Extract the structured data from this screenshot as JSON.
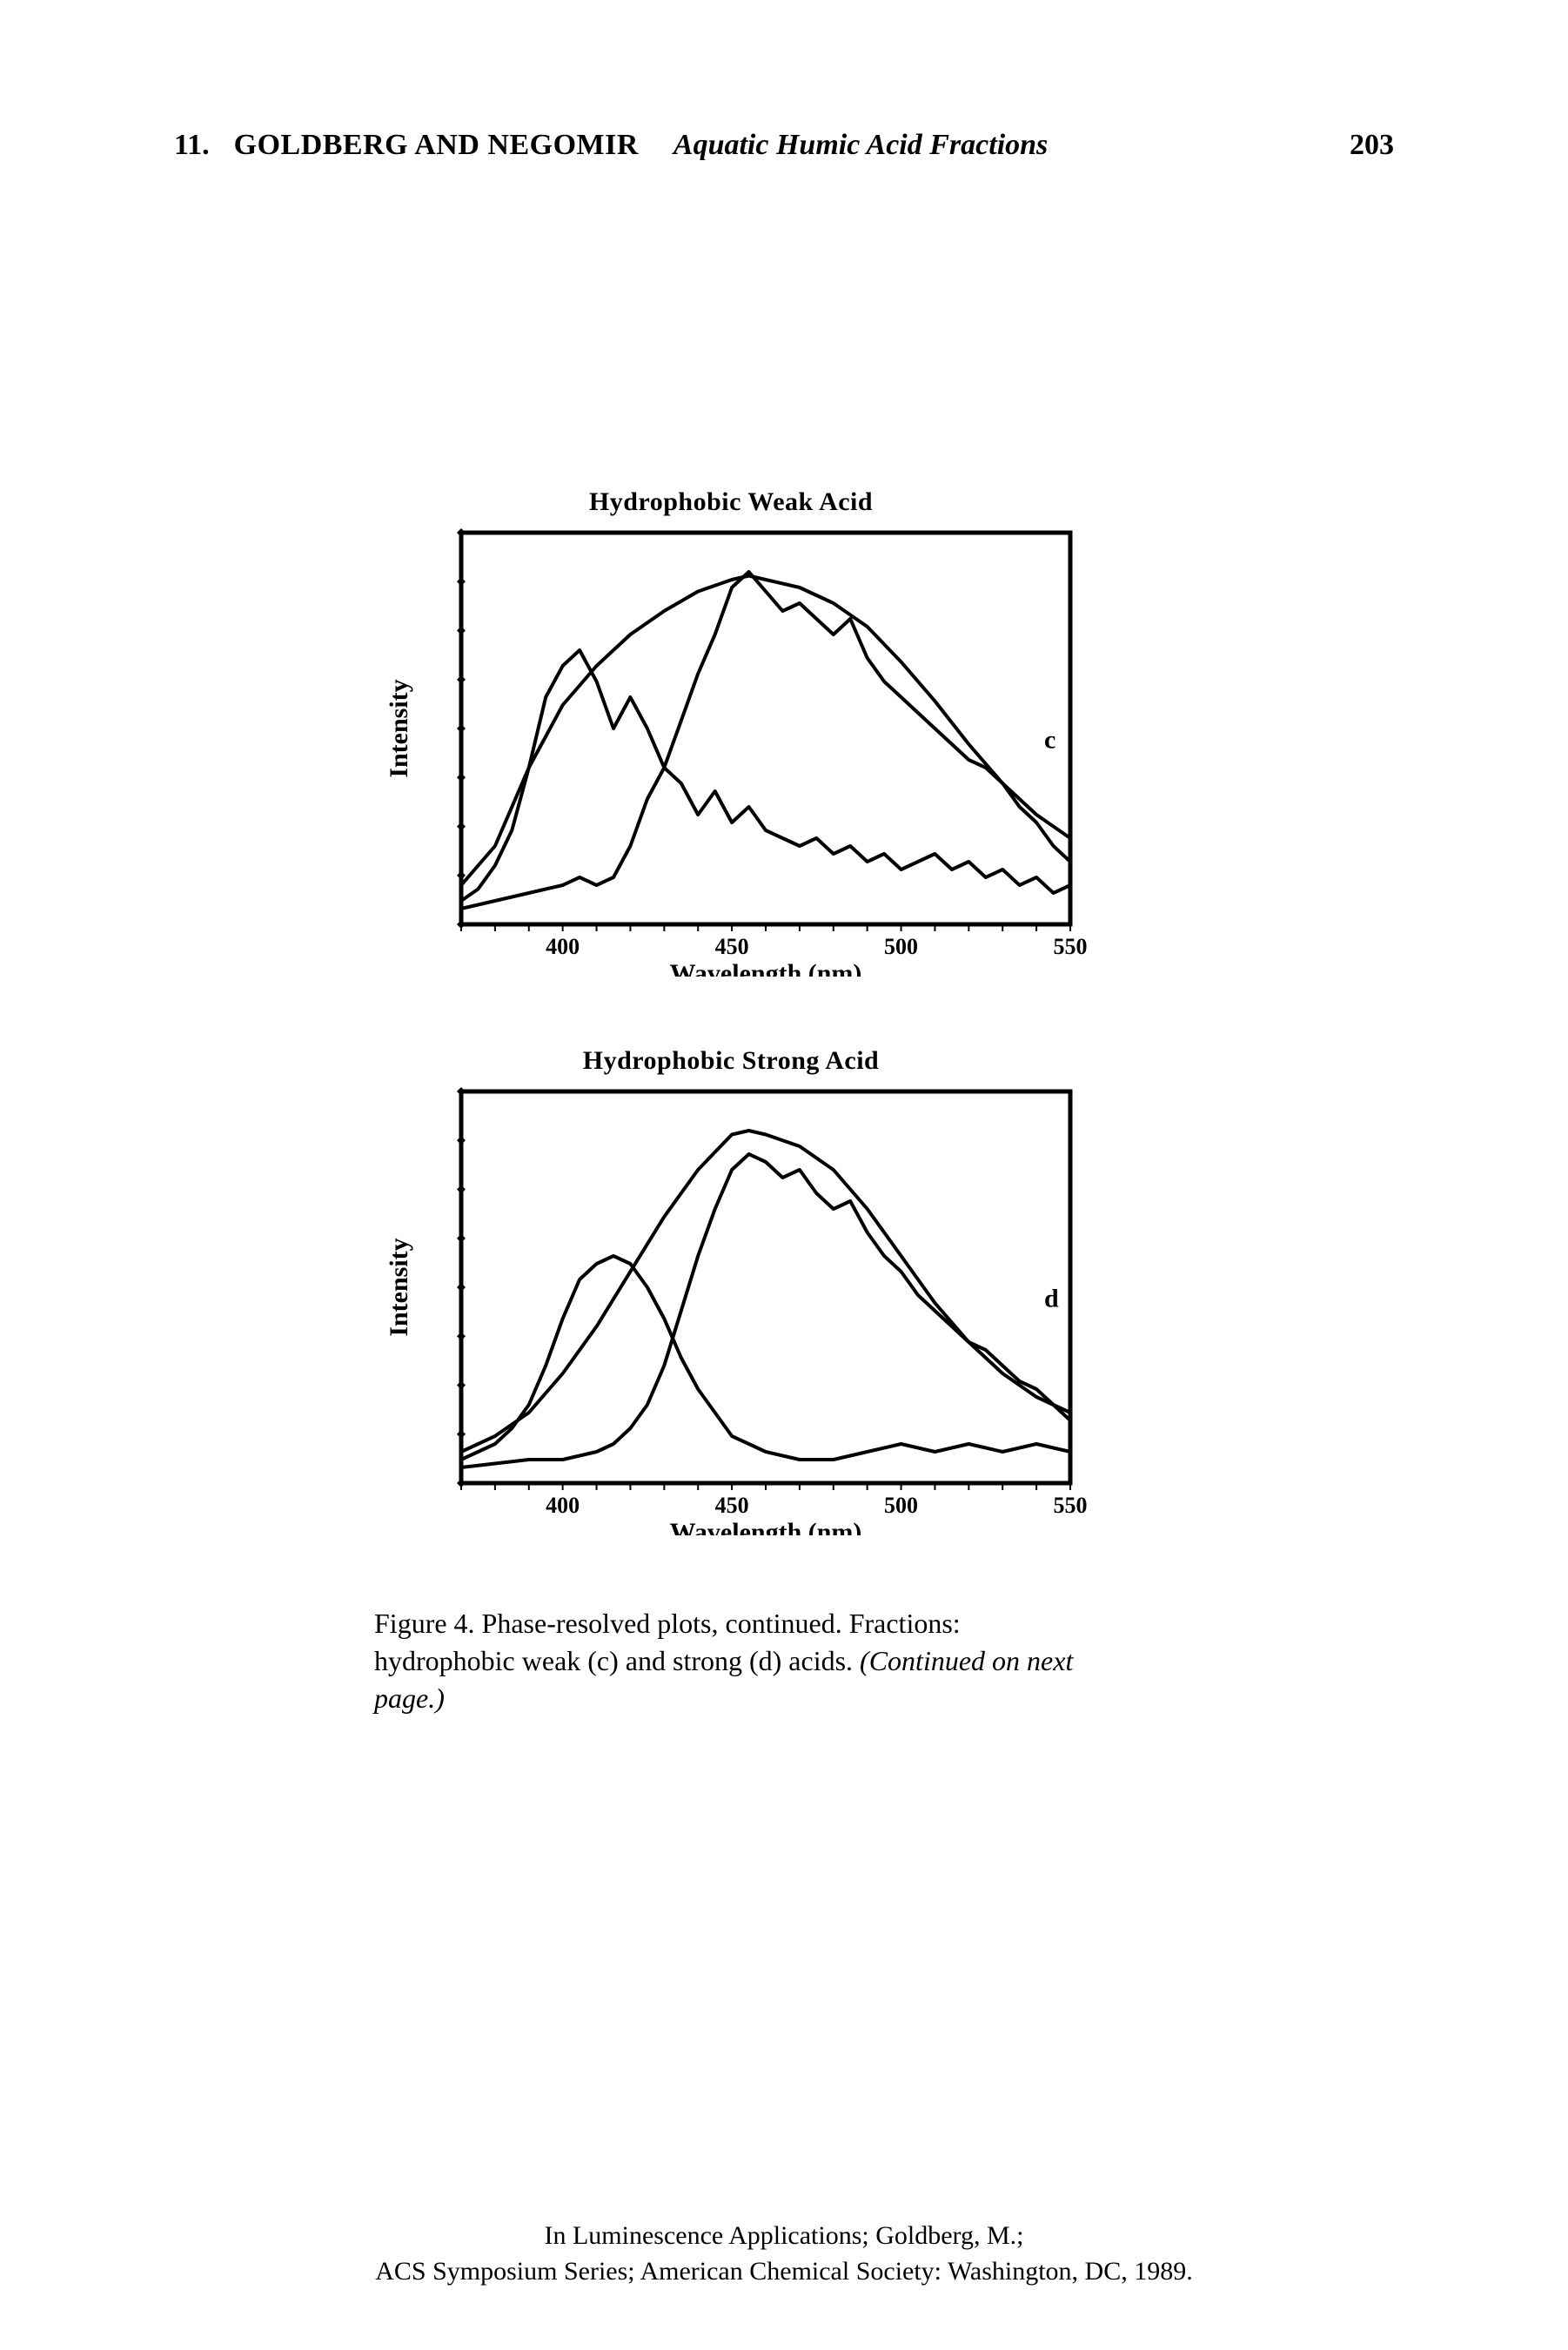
{
  "header": {
    "chapter_number": "11.",
    "authors": "GOLDBERG AND NEGOMIR",
    "running_title": "Aquatic Humic Acid Fractions",
    "page_number": "203"
  },
  "charts": {
    "c": {
      "title": "Hydrophobic Weak Acid",
      "panel_label": "c",
      "xlabel": "Wavelength (nm)",
      "ylabel": "Intensity",
      "xlim": [
        370,
        550
      ],
      "xticks": [
        400,
        450,
        500,
        550
      ],
      "stroke_color": "#000000",
      "stroke_width": 4,
      "background": "#ffffff",
      "series": {
        "envelope": {
          "x": [
            370,
            380,
            390,
            400,
            410,
            420,
            430,
            440,
            450,
            455,
            460,
            470,
            480,
            490,
            500,
            510,
            520,
            530,
            540,
            550
          ],
          "y": [
            10,
            20,
            40,
            56,
            66,
            74,
            80,
            85,
            88,
            89,
            88,
            86,
            82,
            76,
            67,
            57,
            46,
            36,
            28,
            22
          ]
        },
        "jaggedA": {
          "x": [
            370,
            375,
            380,
            385,
            390,
            395,
            400,
            405,
            410,
            415,
            420,
            425,
            430,
            435,
            440,
            445,
            450,
            455,
            460,
            465,
            470,
            475,
            480,
            485,
            490,
            495,
            500,
            505,
            510,
            515,
            520,
            525,
            530,
            535,
            540,
            545,
            550
          ],
          "y": [
            6,
            9,
            15,
            24,
            40,
            58,
            66,
            70,
            62,
            50,
            58,
            50,
            40,
            52,
            64,
            74,
            86,
            90,
            85,
            80,
            82,
            78,
            74,
            78,
            68,
            62,
            58,
            54,
            50,
            46,
            42,
            40,
            36,
            30,
            26,
            20,
            16
          ]
        },
        "jaggedB": {
          "x": [
            370,
            380,
            390,
            400,
            405,
            410,
            415,
            420,
            425,
            430,
            435,
            440,
            445,
            450,
            455,
            460,
            465,
            470,
            475,
            480,
            485,
            490,
            495,
            500,
            505,
            510,
            515,
            520,
            525,
            530,
            535,
            540,
            545,
            550
          ],
          "y": [
            4,
            6,
            8,
            10,
            12,
            10,
            12,
            20,
            32,
            40,
            36,
            28,
            34,
            26,
            30,
            24,
            22,
            20,
            22,
            18,
            20,
            16,
            18,
            14,
            16,
            18,
            14,
            16,
            12,
            14,
            10,
            12,
            8,
            10
          ]
        }
      }
    },
    "d": {
      "title": "Hydrophobic Strong Acid",
      "panel_label": "d",
      "xlabel": "Wavelength (nm)",
      "ylabel": "Intensity",
      "xlim": [
        370,
        550
      ],
      "xticks": [
        400,
        450,
        500,
        550
      ],
      "stroke_color": "#000000",
      "stroke_width": 4,
      "background": "#ffffff",
      "series": {
        "envelope": {
          "x": [
            370,
            380,
            390,
            400,
            410,
            420,
            430,
            440,
            450,
            455,
            460,
            470,
            480,
            490,
            500,
            510,
            520,
            530,
            540,
            550
          ],
          "y": [
            8,
            12,
            18,
            28,
            40,
            54,
            68,
            80,
            89,
            90,
            89,
            86,
            80,
            70,
            58,
            46,
            36,
            28,
            22,
            18
          ]
        },
        "leftComponent": {
          "x": [
            370,
            375,
            380,
            385,
            390,
            395,
            400,
            405,
            410,
            415,
            420,
            425,
            430,
            435,
            440,
            445,
            450,
            455,
            460,
            465,
            470,
            475,
            480,
            490,
            500,
            510,
            520,
            530,
            540,
            550
          ],
          "y": [
            6,
            8,
            10,
            14,
            20,
            30,
            42,
            52,
            56,
            58,
            56,
            50,
            42,
            32,
            24,
            18,
            12,
            10,
            8,
            7,
            6,
            6,
            6,
            8,
            10,
            8,
            10,
            8,
            10,
            8
          ]
        },
        "rightComponent": {
          "x": [
            370,
            380,
            390,
            400,
            410,
            415,
            420,
            425,
            430,
            435,
            440,
            445,
            450,
            455,
            460,
            465,
            470,
            475,
            480,
            485,
            490,
            495,
            500,
            505,
            510,
            515,
            520,
            525,
            530,
            535,
            540,
            545,
            550
          ],
          "y": [
            4,
            5,
            6,
            6,
            8,
            10,
            14,
            20,
            30,
            44,
            58,
            70,
            80,
            84,
            82,
            78,
            80,
            74,
            70,
            72,
            64,
            58,
            54,
            48,
            44,
            40,
            36,
            34,
            30,
            26,
            24,
            20,
            16
          ]
        }
      }
    }
  },
  "caption": {
    "prefix": "Figure 4.  Phase-resolved plots, continued.  Fractions:  hydrophobic weak (c) and strong (d) acids.  ",
    "italic": "(Continued on next page.)"
  },
  "footer": {
    "line1": "In Luminescence Applications; Goldberg, M.;",
    "line2": "ACS Symposium Series; American Chemical Society: Washington, DC, 1989."
  },
  "style": {
    "page_background": "#ffffff",
    "text_color": "#000000",
    "body_font": "Times New Roman",
    "header_fontsize": 34,
    "chart_title_fontsize": 30,
    "tick_fontsize": 26,
    "axis_label_fontsize": 30,
    "caption_fontsize": 32,
    "footer_fontsize": 30,
    "chart_frame_width": 5,
    "chart_frame_color": "#000000",
    "chart_aspect_w": 700,
    "chart_aspect_h": 450
  }
}
